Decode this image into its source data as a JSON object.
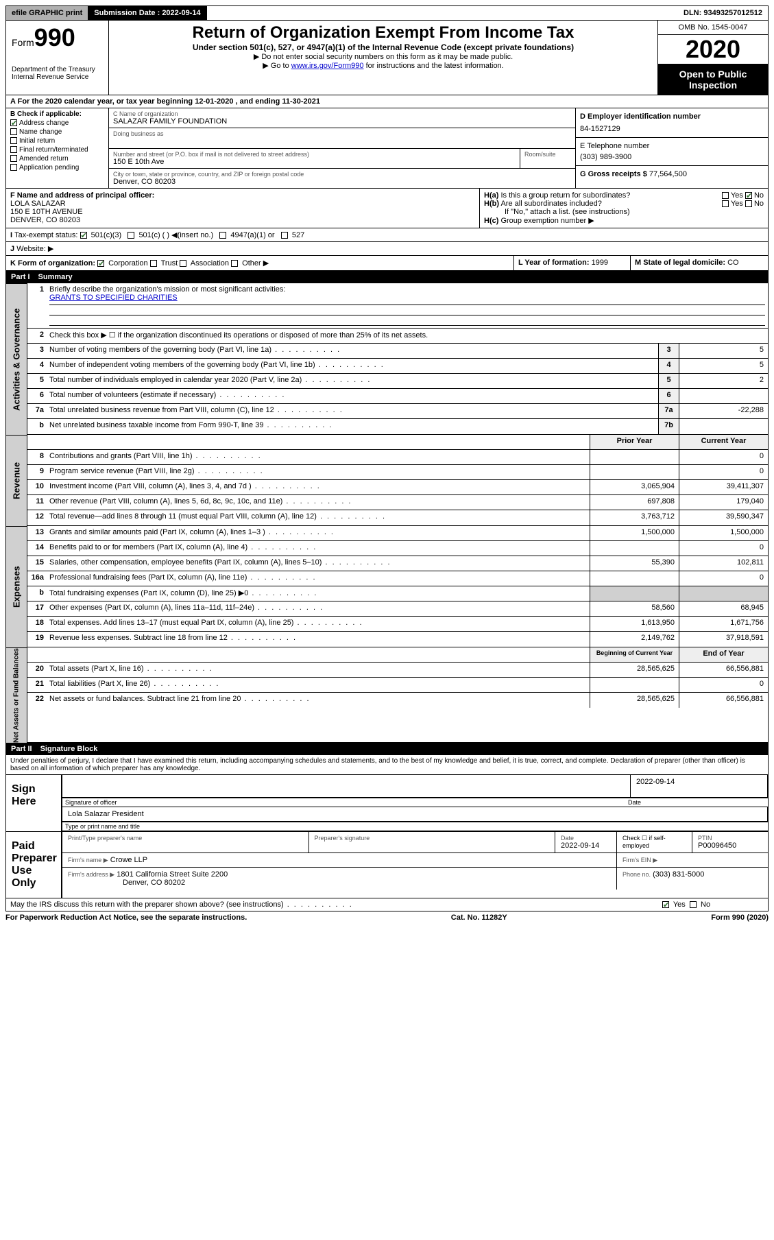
{
  "topbar": {
    "efile": "efile GRAPHIC print",
    "subdate_label": "Submission Date : 2022-09-14",
    "dln": "DLN: 93493257012512"
  },
  "header": {
    "form_prefix": "Form",
    "form_number": "990",
    "dept": "Department of the Treasury",
    "irs": "Internal Revenue Service",
    "title": "Return of Organization Exempt From Income Tax",
    "subtitle": "Under section 501(c), 527, or 4947(a)(1) of the Internal Revenue Code (except private foundations)",
    "note1": "▶ Do not enter social security numbers on this form as it may be made public.",
    "note2_prefix": "▶ Go to ",
    "note2_link": "www.irs.gov/Form990",
    "note2_suffix": " for instructions and the latest information.",
    "omb": "OMB No. 1545-0047",
    "year": "2020",
    "open": "Open to Public Inspection"
  },
  "A": {
    "text": "For the 2020 calendar year, or tax year beginning 12-01-2020    , and ending 11-30-2021"
  },
  "B": {
    "label": "B Check if applicable:",
    "opts": [
      "Address change",
      "Name change",
      "Initial return",
      "Final return/terminated",
      "Amended return",
      "Application pending"
    ],
    "checked": [
      true,
      false,
      false,
      false,
      false,
      false
    ]
  },
  "C": {
    "name_label": "C Name of organization",
    "name": "SALAZAR FAMILY FOUNDATION",
    "dba_label": "Doing business as",
    "street_label": "Number and street (or P.O. box if mail is not delivered to street address)",
    "room_label": "Room/suite",
    "street": "150 E 10th Ave",
    "city_label": "City or town, state or province, country, and ZIP or foreign postal code",
    "city": "Denver, CO  80203"
  },
  "D": {
    "label": "D Employer identification number",
    "value": "84-1527129"
  },
  "E": {
    "label": "E Telephone number",
    "value": "(303) 989-3900"
  },
  "G": {
    "label": "G Gross receipts $",
    "value": "77,564,500"
  },
  "F": {
    "label": "F  Name and address of principal officer:",
    "name": "LOLA SALAZAR",
    "addr1": "150 E 10TH AVENUE",
    "addr2": "DENVER, CO  80203"
  },
  "H": {
    "a": "Is this a group return for subordinates?",
    "b": "Are all subordinates included?",
    "c": "Group exemption number ▶",
    "note": "If \"No,\" attach a list. (see instructions)",
    "yes": "Yes",
    "no": "No"
  },
  "I": {
    "label": "Tax-exempt status:",
    "opts": [
      "501(c)(3)",
      "501(c) (  ) ◀(insert no.)",
      "4947(a)(1) or",
      "527"
    ]
  },
  "J": {
    "label": "Website: ▶"
  },
  "K": {
    "label": "K Form of organization:",
    "opts": [
      "Corporation",
      "Trust",
      "Association",
      "Other ▶"
    ]
  },
  "L": {
    "label": "L Year of formation:",
    "value": "1999"
  },
  "M": {
    "label": "M State of legal domicile:",
    "value": "CO"
  },
  "part1": {
    "title": "Summary",
    "q1": "Briefly describe the organization's mission or most significant activities:",
    "a1": "GRANTS TO SPECIFIED CHARITIES",
    "q2": "Check this box ▶ ☐  if the organization discontinued its operations or disposed of more than 25% of its net assets."
  },
  "gov": {
    "label": "Activities & Governance",
    "rows": [
      {
        "n": "3",
        "d": "Number of voting members of the governing body (Part VI, line 1a)",
        "b": "3",
        "v": "5"
      },
      {
        "n": "4",
        "d": "Number of independent voting members of the governing body (Part VI, line 1b)",
        "b": "4",
        "v": "5"
      },
      {
        "n": "5",
        "d": "Total number of individuals employed in calendar year 2020 (Part V, line 2a)",
        "b": "5",
        "v": "2"
      },
      {
        "n": "6",
        "d": "Total number of volunteers (estimate if necessary)",
        "b": "6",
        "v": ""
      },
      {
        "n": "7a",
        "d": "Total unrelated business revenue from Part VIII, column (C), line 12",
        "b": "7a",
        "v": "-22,288"
      },
      {
        "n": "b",
        "d": "Net unrelated business taxable income from Form 990-T, line 39",
        "b": "7b",
        "v": ""
      }
    ]
  },
  "rev": {
    "label": "Revenue",
    "head_prior": "Prior Year",
    "head_cur": "Current Year",
    "rows": [
      {
        "n": "8",
        "d": "Contributions and grants (Part VIII, line 1h)",
        "p": "",
        "c": "0"
      },
      {
        "n": "9",
        "d": "Program service revenue (Part VIII, line 2g)",
        "p": "",
        "c": "0"
      },
      {
        "n": "10",
        "d": "Investment income (Part VIII, column (A), lines 3, 4, and 7d )",
        "p": "3,065,904",
        "c": "39,411,307"
      },
      {
        "n": "11",
        "d": "Other revenue (Part VIII, column (A), lines 5, 6d, 8c, 9c, 10c, and 11e)",
        "p": "697,808",
        "c": "179,040"
      },
      {
        "n": "12",
        "d": "Total revenue—add lines 8 through 11 (must equal Part VIII, column (A), line 12)",
        "p": "3,763,712",
        "c": "39,590,347"
      }
    ]
  },
  "exp": {
    "label": "Expenses",
    "rows": [
      {
        "n": "13",
        "d": "Grants and similar amounts paid (Part IX, column (A), lines 1–3 )",
        "p": "1,500,000",
        "c": "1,500,000"
      },
      {
        "n": "14",
        "d": "Benefits paid to or for members (Part IX, column (A), line 4)",
        "p": "",
        "c": "0"
      },
      {
        "n": "15",
        "d": "Salaries, other compensation, employee benefits (Part IX, column (A), lines 5–10)",
        "p": "55,390",
        "c": "102,811"
      },
      {
        "n": "16a",
        "d": "Professional fundraising fees (Part IX, column (A), line 11e)",
        "p": "",
        "c": "0"
      },
      {
        "n": "b",
        "d": "Total fundraising expenses (Part IX, column (D), line 25) ▶0",
        "p": "—shade—",
        "c": "—shade—"
      },
      {
        "n": "17",
        "d": "Other expenses (Part IX, column (A), lines 11a–11d, 11f–24e)",
        "p": "58,560",
        "c": "68,945"
      },
      {
        "n": "18",
        "d": "Total expenses. Add lines 13–17 (must equal Part IX, column (A), line 25)",
        "p": "1,613,950",
        "c": "1,671,756"
      },
      {
        "n": "19",
        "d": "Revenue less expenses. Subtract line 18 from line 12",
        "p": "2,149,762",
        "c": "37,918,591"
      }
    ]
  },
  "net": {
    "label": "Net Assets or Fund Balances",
    "head_b": "Beginning of Current Year",
    "head_e": "End of Year",
    "rows": [
      {
        "n": "20",
        "d": "Total assets (Part X, line 16)",
        "p": "28,565,625",
        "c": "66,556,881"
      },
      {
        "n": "21",
        "d": "Total liabilities (Part X, line 26)",
        "p": "",
        "c": "0"
      },
      {
        "n": "22",
        "d": "Net assets or fund balances. Subtract line 21 from line 20",
        "p": "28,565,625",
        "c": "66,556,881"
      }
    ]
  },
  "part2": {
    "title": "Signature Block",
    "decl": "Under penalties of perjury, I declare that I have examined this return, including accompanying schedules and statements, and to the best of my knowledge and belief, it is true, correct, and complete. Declaration of preparer (other than officer) is based on all information of which preparer has any knowledge."
  },
  "sign": {
    "label": "Sign Here",
    "sig_of_officer": "Signature of officer",
    "date": "2022-09-14",
    "date_label": "Date",
    "name_title": "Lola Salazar  President",
    "type_label": "Type or print name and title"
  },
  "prep": {
    "label": "Paid Preparer Use Only",
    "print_label": "Print/Type preparer's name",
    "sig_label": "Preparer's signature",
    "date_label": "Date",
    "date": "2022-09-14",
    "check_label": "Check ☐  if self-employed",
    "ptin_label": "PTIN",
    "ptin": "P00096450",
    "firm_name_label": "Firm's name    ▶",
    "firm_name": "Crowe LLP",
    "firm_ein_label": "Firm's EIN ▶",
    "firm_addr_label": "Firm's address ▶",
    "firm_addr1": "1801 California Street Suite 2200",
    "firm_addr2": "Denver, CO  80202",
    "phone_label": "Phone no.",
    "phone": "(303) 831-5000"
  },
  "discuss": {
    "q": "May the IRS discuss this return with the preparer shown above? (see instructions)",
    "yes": "Yes",
    "no": "No"
  },
  "footer": {
    "left": "For Paperwork Reduction Act Notice, see the separate instructions.",
    "mid": "Cat. No. 11282Y",
    "right": "Form 990 (2020)"
  }
}
